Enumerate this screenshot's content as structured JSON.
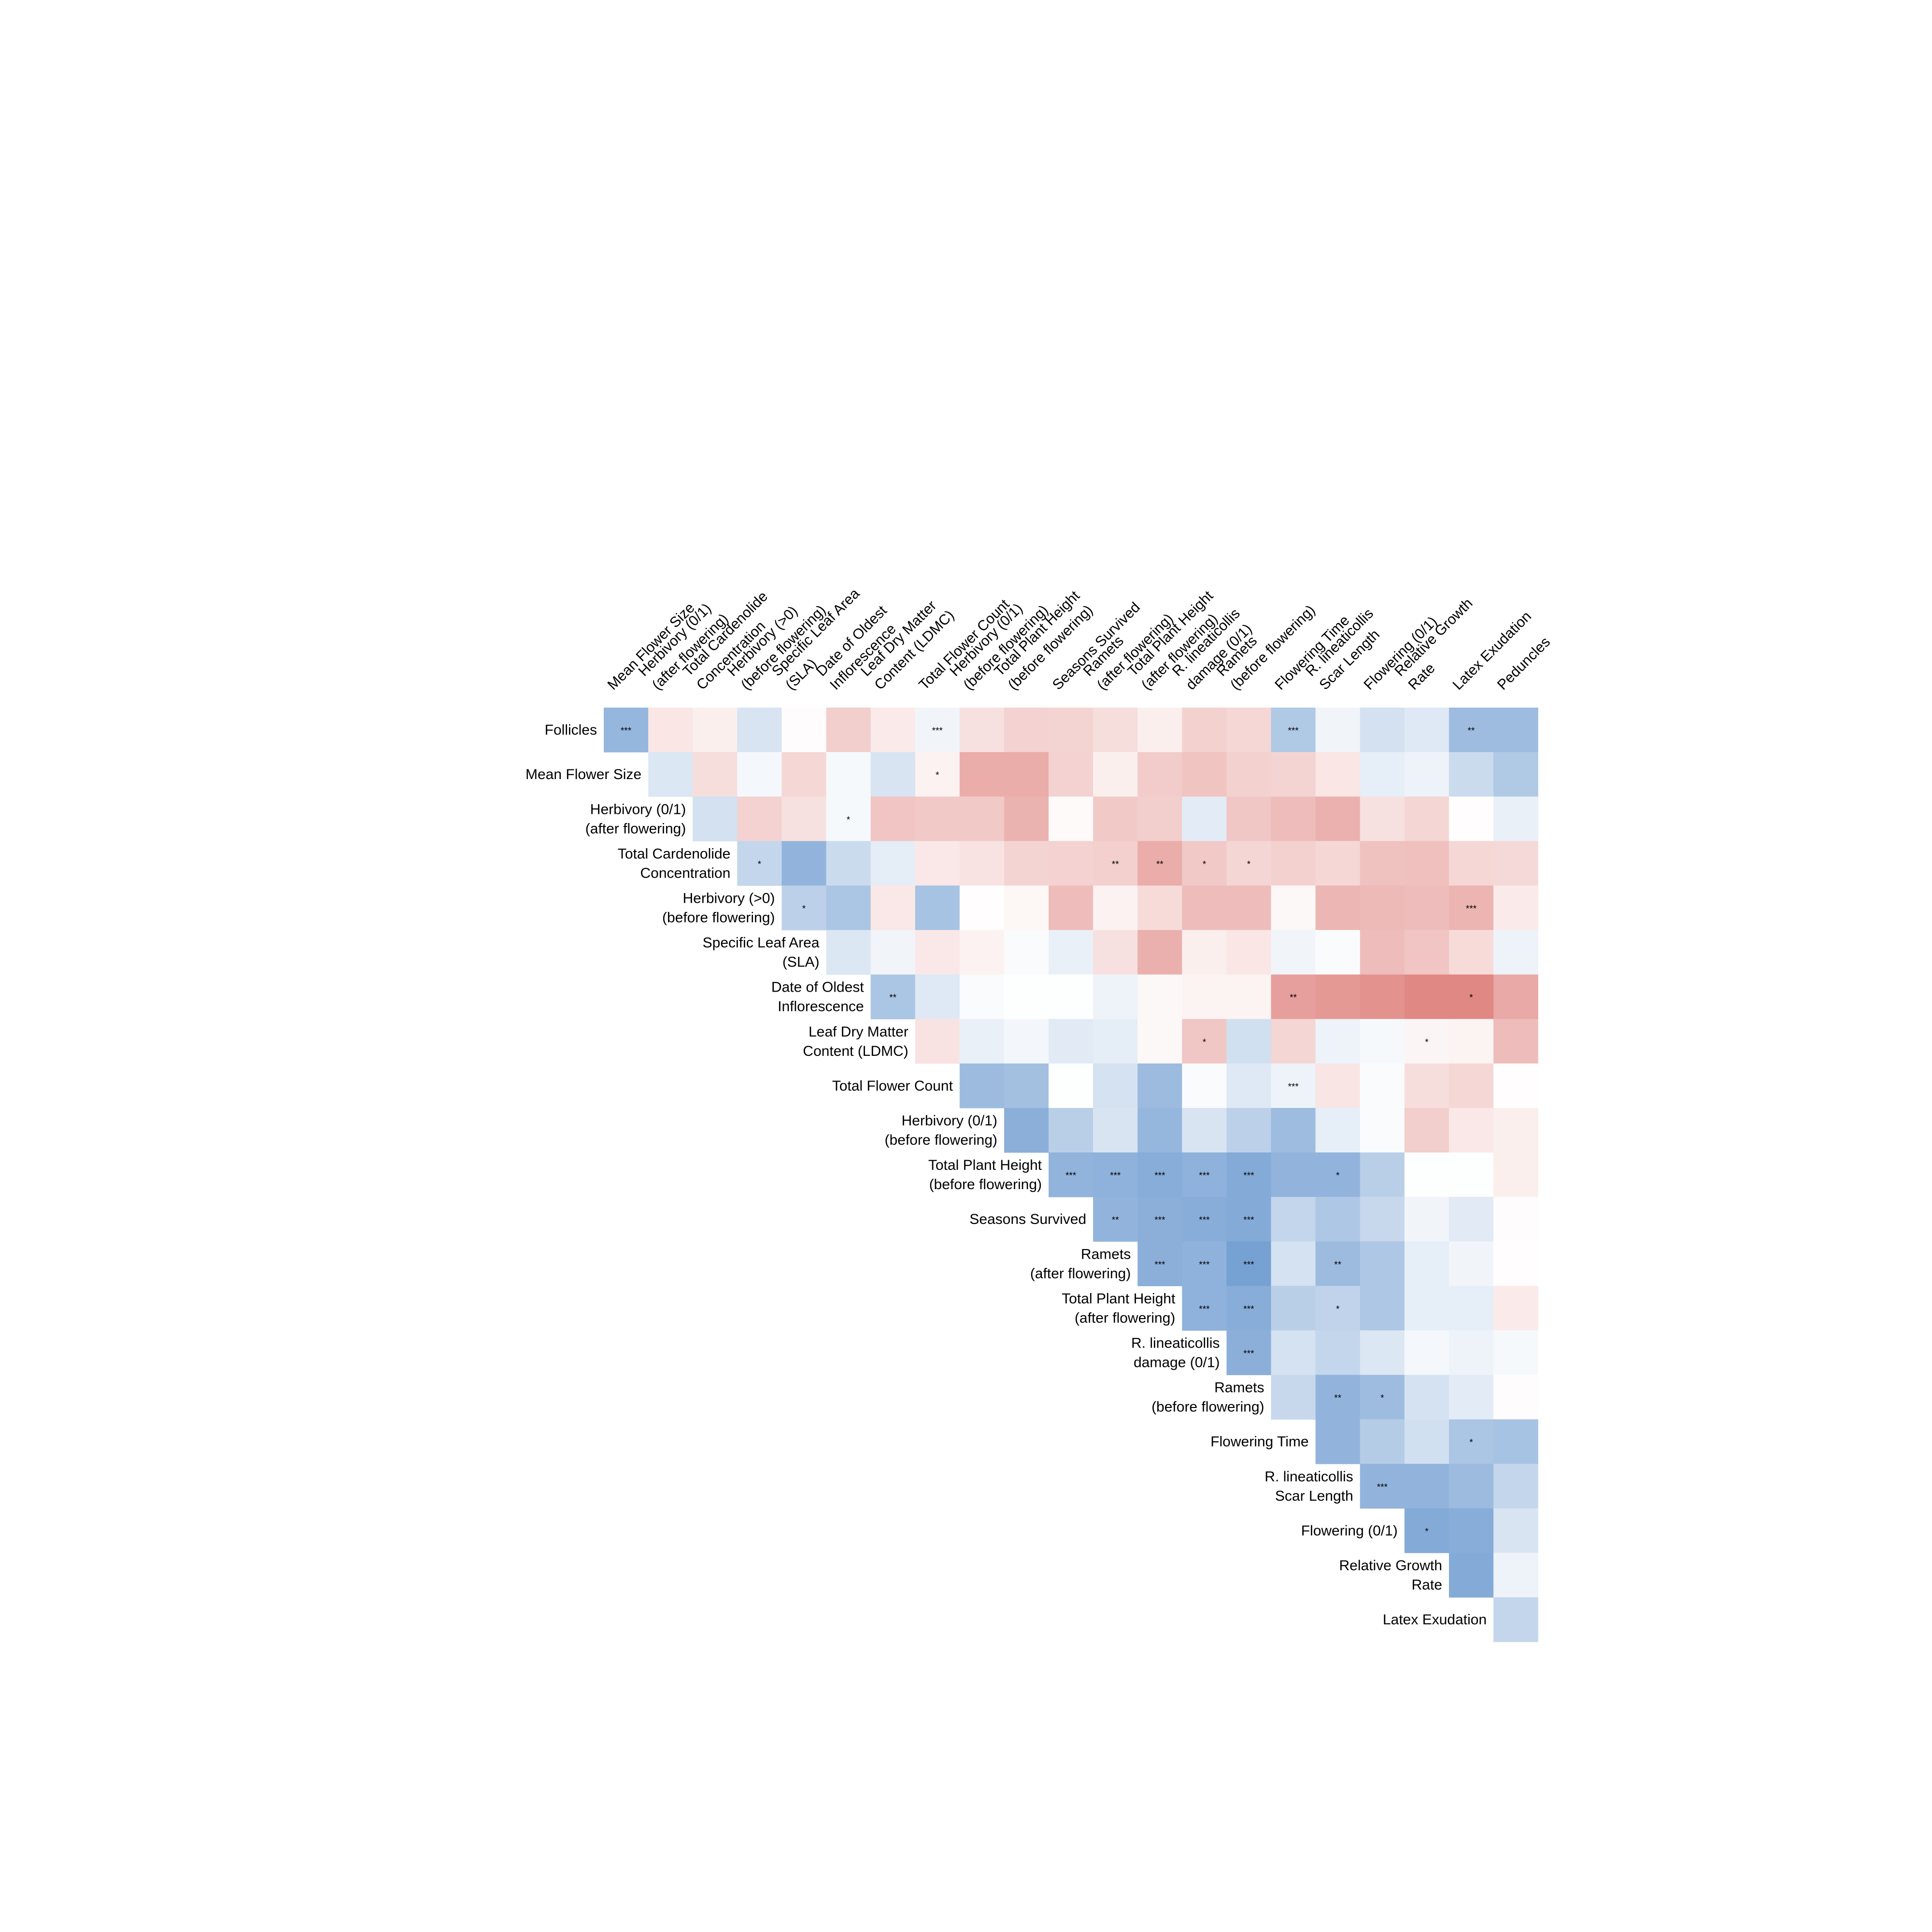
{
  "chart_data": {
    "type": "heatmap",
    "row_labels": [
      [
        "Follicles"
      ],
      [
        "Mean Flower Size"
      ],
      [
        "Herbivory (0/1)",
        "(after flowering)"
      ],
      [
        "Total Cardenolide",
        "Concentration"
      ],
      [
        "Herbivory (>0)",
        "(before flowering)"
      ],
      [
        "Specific Leaf Area",
        "(SLA)"
      ],
      [
        "Date of Oldest",
        "Inflorescence"
      ],
      [
        "Leaf Dry Matter",
        "Content (LDMC)"
      ],
      [
        "Total Flower Count"
      ],
      [
        "Herbivory (0/1)",
        "(before flowering)"
      ],
      [
        "Total Plant Height",
        "(before flowering)"
      ],
      [
        "Seasons Survived"
      ],
      [
        "Ramets",
        "(after flowering)"
      ],
      [
        "Total Plant Height",
        "(after flowering)"
      ],
      [
        "R. lineaticollis",
        "damage (0/1)"
      ],
      [
        "Ramets",
        "(before flowering)"
      ],
      [
        "Flowering Time"
      ],
      [
        "R. lineaticollis",
        "Scar Length"
      ],
      [
        "Flowering (0/1)"
      ],
      [
        "Relative Growth",
        "Rate"
      ],
      [
        "Latex Exudation"
      ]
    ],
    "col_labels": [
      [
        "Mean Flower Size"
      ],
      [
        "Herbivory (0/1)",
        "(after flowering)"
      ],
      [
        "Total Cardenolide",
        "Concentration"
      ],
      [
        "Herbivory (>0)",
        "(before flowering)"
      ],
      [
        "Specific Leaf Area",
        "(SLA)"
      ],
      [
        "Date of Oldest",
        "Inflorescence"
      ],
      [
        "Leaf Dry Matter",
        "Content (LDMC)"
      ],
      [
        "Total Flower Count"
      ],
      [
        "Herbivory (0/1)",
        "(before flowering)"
      ],
      [
        "Total Plant Height",
        "(before flowering)"
      ],
      [
        "Seasons Survived"
      ],
      [
        "Ramets",
        "(after flowering)"
      ],
      [
        "Total Plant Height",
        "(after flowering)"
      ],
      [
        "R. lineaticollis",
        "damage (0/1)"
      ],
      [
        "Ramets",
        "(before flowering)"
      ],
      [
        "Flowering Time"
      ],
      [
        "R. lineaticollis",
        "Scar Length"
      ],
      [
        "Flowering (0/1)"
      ],
      [
        "Relative Growth",
        "Rate"
      ],
      [
        "Latex Exudation"
      ],
      [
        "Peduncles"
      ]
    ],
    "values": [
      [
        -0.6,
        0.15,
        0.1,
        -0.22,
        0.02,
        0.3,
        0.12,
        -0.08,
        0.18,
        0.27,
        0.26,
        0.2,
        0.1,
        0.28,
        0.24,
        -0.45,
        -0.08,
        -0.25,
        -0.18,
        -0.55,
        -0.55
      ],
      [
        null,
        -0.2,
        0.2,
        -0.06,
        0.24,
        -0.05,
        -0.22,
        0.08,
        0.5,
        0.5,
        0.27,
        0.1,
        0.31,
        0.36,
        0.28,
        0.26,
        0.15,
        -0.14,
        -0.1,
        -0.3,
        -0.45
      ],
      [
        null,
        null,
        -0.25,
        0.27,
        0.18,
        -0.05,
        0.35,
        0.33,
        0.32,
        0.46,
        0.03,
        0.32,
        0.3,
        -0.16,
        0.34,
        0.4,
        0.47,
        0.18,
        0.25,
        0.01,
        -0.12
      ],
      [
        null,
        null,
        null,
        -0.34,
        -0.62,
        -0.3,
        -0.15,
        0.14,
        0.17,
        0.26,
        0.27,
        0.29,
        0.5,
        0.33,
        0.25,
        0.28,
        0.24,
        0.37,
        0.38,
        0.24,
        0.23
      ],
      [
        null,
        null,
        null,
        null,
        -0.38,
        -0.48,
        0.14,
        -0.5,
        0.01,
        0.05,
        0.4,
        0.08,
        0.22,
        0.4,
        0.4,
        0.04,
        0.44,
        0.42,
        0.4,
        0.45,
        0.12
      ],
      [
        null,
        null,
        null,
        null,
        null,
        -0.2,
        -0.08,
        0.14,
        0.08,
        -0.03,
        -0.12,
        0.18,
        0.48,
        0.1,
        0.15,
        -0.08,
        -0.03,
        0.4,
        0.35,
        0.22,
        -0.1
      ],
      [
        null,
        null,
        null,
        null,
        null,
        null,
        -0.48,
        -0.18,
        -0.03,
        -0.01,
        -0.01,
        -0.1,
        0.04,
        0.07,
        0.07,
        0.58,
        0.62,
        0.66,
        0.72,
        0.72,
        0.52
      ],
      [
        null,
        null,
        null,
        null,
        null,
        null,
        null,
        0.17,
        -0.12,
        -0.07,
        -0.17,
        -0.15,
        0.04,
        0.34,
        -0.26,
        0.25,
        -0.1,
        -0.05,
        0.06,
        0.07,
        0.4
      ],
      [
        null,
        null,
        null,
        null,
        null,
        null,
        null,
        null,
        -0.56,
        -0.52,
        -0.01,
        -0.24,
        -0.56,
        -0.03,
        -0.18,
        -0.1,
        0.16,
        -0.03,
        0.2,
        0.24,
        0.01
      ],
      [
        null,
        null,
        null,
        null,
        null,
        null,
        null,
        null,
        null,
        -0.66,
        -0.4,
        -0.22,
        -0.6,
        -0.22,
        -0.38,
        -0.55,
        -0.14,
        -0.03,
        0.3,
        0.14,
        0.1
      ],
      [
        null,
        null,
        null,
        null,
        null,
        null,
        null,
        null,
        null,
        null,
        -0.62,
        -0.64,
        -0.68,
        -0.64,
        -0.7,
        -0.62,
        -0.62,
        -0.4,
        -0.01,
        -0.01,
        0.1
      ],
      [
        null,
        null,
        null,
        null,
        null,
        null,
        null,
        null,
        null,
        null,
        null,
        -0.62,
        -0.66,
        -0.68,
        -0.7,
        -0.34,
        -0.46,
        -0.32,
        -0.08,
        -0.17,
        0.02
      ],
      [
        null,
        null,
        null,
        null,
        null,
        null,
        null,
        null,
        null,
        null,
        null,
        null,
        -0.66,
        -0.64,
        -0.78,
        -0.24,
        -0.56,
        -0.46,
        -0.14,
        -0.08,
        0.01
      ],
      [
        null,
        null,
        null,
        null,
        null,
        null,
        null,
        null,
        null,
        null,
        null,
        null,
        null,
        -0.64,
        -0.68,
        -0.4,
        -0.36,
        -0.46,
        -0.14,
        -0.14,
        0.12
      ],
      [
        null,
        null,
        null,
        null,
        null,
        null,
        null,
        null,
        null,
        null,
        null,
        null,
        null,
        null,
        -0.66,
        -0.24,
        -0.34,
        -0.2,
        -0.06,
        -0.1,
        -0.05
      ],
      [
        null,
        null,
        null,
        null,
        null,
        null,
        null,
        null,
        null,
        null,
        null,
        null,
        null,
        null,
        null,
        -0.32,
        -0.62,
        -0.55,
        -0.24,
        -0.16,
        0.02
      ],
      [
        null,
        null,
        null,
        null,
        null,
        null,
        null,
        null,
        null,
        null,
        null,
        null,
        null,
        null,
        null,
        null,
        -0.62,
        -0.42,
        -0.26,
        -0.48,
        -0.5
      ],
      [
        null,
        null,
        null,
        null,
        null,
        null,
        null,
        null,
        null,
        null,
        null,
        null,
        null,
        null,
        null,
        null,
        null,
        -0.62,
        -0.62,
        -0.56,
        -0.34
      ],
      [
        null,
        null,
        null,
        null,
        null,
        null,
        null,
        null,
        null,
        null,
        null,
        null,
        null,
        null,
        null,
        null,
        null,
        null,
        -0.7,
        -0.68,
        -0.22
      ],
      [
        null,
        null,
        null,
        null,
        null,
        null,
        null,
        null,
        null,
        null,
        null,
        null,
        null,
        null,
        null,
        null,
        null,
        null,
        null,
        -0.7,
        -0.1
      ],
      [
        null,
        null,
        null,
        null,
        null,
        null,
        null,
        null,
        null,
        null,
        null,
        null,
        null,
        null,
        null,
        null,
        null,
        null,
        null,
        null,
        -0.34
      ]
    ],
    "stars": [
      [
        "***",
        "",
        "",
        "",
        "",
        "",
        "",
        "***",
        "",
        "",
        "",
        "",
        "",
        "",
        "",
        "***",
        "",
        "",
        "",
        "**",
        ""
      ],
      [
        "",
        "",
        "",
        "",
        "",
        "",
        "",
        "*",
        "",
        "",
        "",
        "",
        "",
        "",
        "",
        "",
        "",
        "",
        "",
        "",
        ""
      ],
      [
        "",
        "",
        "",
        "",
        "",
        "*",
        "",
        "",
        "",
        "",
        "",
        "",
        "",
        "",
        "",
        "",
        "",
        "",
        "",
        "",
        ""
      ],
      [
        "",
        "",
        "",
        "*",
        "",
        "",
        "",
        "",
        "",
        "",
        "",
        "**",
        "**",
        "*",
        "*",
        "",
        "",
        "",
        "",
        "",
        ""
      ],
      [
        "",
        "",
        "",
        "",
        "*",
        "",
        "",
        "",
        "",
        "",
        "",
        "",
        "",
        "",
        "",
        "",
        "",
        "",
        "",
        "***",
        ""
      ],
      [
        "",
        "",
        "",
        "",
        "",
        "",
        "",
        "",
        "",
        "",
        "",
        "",
        "",
        "",
        "",
        "",
        "",
        "",
        "",
        "",
        ""
      ],
      [
        "",
        "",
        "",
        "",
        "",
        "",
        "**",
        "",
        "",
        "",
        "",
        "",
        "",
        "",
        "",
        "**",
        "",
        "",
        "",
        "*",
        ""
      ],
      [
        "",
        "",
        "",
        "",
        "",
        "",
        "",
        "",
        "",
        "",
        "",
        "",
        "",
        "*",
        "",
        "",
        "",
        "",
        "*",
        "",
        ""
      ],
      [
        "",
        "",
        "",
        "",
        "",
        "",
        "",
        "",
        "",
        "",
        "",
        "",
        "",
        "",
        "",
        "***",
        "",
        "",
        "",
        "",
        ""
      ],
      [
        "",
        "",
        "",
        "",
        "",
        "",
        "",
        "",
        "",
        "",
        "",
        "",
        "",
        "",
        "",
        "",
        "",
        "",
        "",
        "",
        ""
      ],
      [
        "",
        "",
        "",
        "",
        "",
        "",
        "",
        "",
        "",
        "",
        "***",
        "***",
        "***",
        "***",
        "***",
        "",
        "*",
        "",
        "",
        "",
        ""
      ],
      [
        "",
        "",
        "",
        "",
        "",
        "",
        "",
        "",
        "",
        "",
        "",
        "**",
        "***",
        "***",
        "***",
        "",
        "",
        "",
        "",
        "",
        ""
      ],
      [
        "",
        "",
        "",
        "",
        "",
        "",
        "",
        "",
        "",
        "",
        "",
        "",
        "***",
        "***",
        "***",
        "",
        "**",
        "",
        "",
        "",
        ""
      ],
      [
        "",
        "",
        "",
        "",
        "",
        "",
        "",
        "",
        "",
        "",
        "",
        "",
        "",
        "***",
        "***",
        "",
        "*",
        "",
        "",
        "",
        ""
      ],
      [
        "",
        "",
        "",
        "",
        "",
        "",
        "",
        "",
        "",
        "",
        "",
        "",
        "",
        "",
        "***",
        "",
        "",
        "",
        "",
        "",
        ""
      ],
      [
        "",
        "",
        "",
        "",
        "",
        "",
        "",
        "",
        "",
        "",
        "",
        "",
        "",
        "",
        "",
        "",
        "**",
        "*",
        "",
        "",
        ""
      ],
      [
        "",
        "",
        "",
        "",
        "",
        "",
        "",
        "",
        "",
        "",
        "",
        "",
        "",
        "",
        "",
        "",
        "",
        "",
        "",
        "*",
        ""
      ],
      [
        "",
        "",
        "",
        "",
        "",
        "",
        "",
        "",
        "",
        "",
        "",
        "",
        "",
        "",
        "",
        "",
        "",
        "***",
        "",
        "",
        ""
      ],
      [
        "",
        "",
        "",
        "",
        "",
        "",
        "",
        "",
        "",
        "",
        "",
        "",
        "",
        "",
        "",
        "",
        "",
        "",
        "*",
        "",
        ""
      ],
      [
        "",
        "",
        "",
        "",
        "",
        "",
        "",
        "",
        "",
        "",
        "",
        "",
        "",
        "",
        "",
        "",
        "",
        "",
        "",
        "",
        ""
      ],
      [
        "",
        "",
        "",
        "",
        "",
        "",
        "",
        "",
        "",
        "",
        "",
        "",
        "",
        "",
        "",
        "",
        "",
        "",
        "",
        "",
        ""
      ]
    ],
    "colors": {
      "negative": "#4f86c6",
      "neutral": "#ffffff",
      "positive": "#d45a54",
      "star_text": "#222222"
    },
    "value_range": [
      -1,
      1
    ],
    "legend": "none",
    "grid": false
  }
}
